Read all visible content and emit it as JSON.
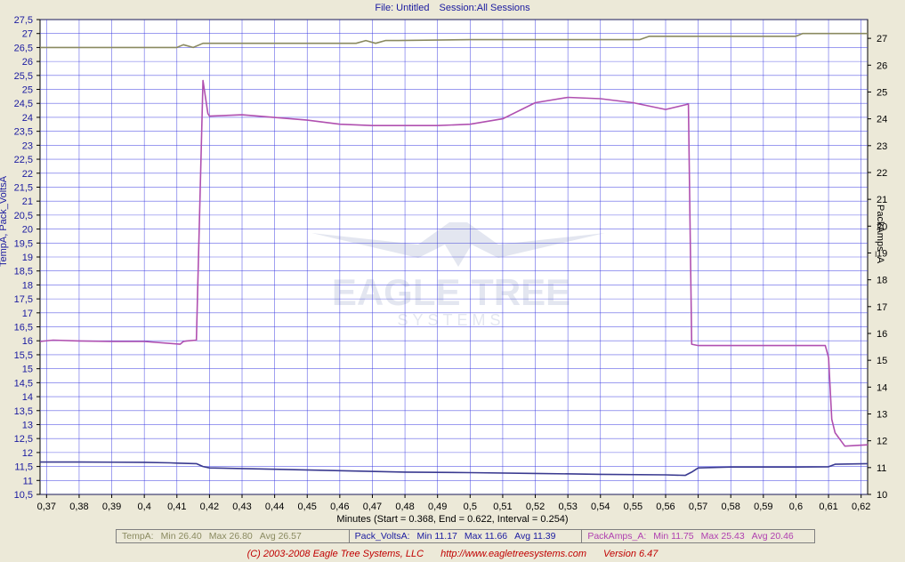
{
  "header": {
    "file_label": "File: Untitled",
    "session_label": "Session:All Sessions"
  },
  "footer": {
    "copyright": "(C) 2003-2008 Eagle Tree Systems, LLC",
    "url": "http://www.eagletreesystems.com",
    "version": "Version 6.47"
  },
  "watermark": {
    "name": "EAGLE TREE",
    "sub": "SYSTEMS"
  },
  "legend": [
    {
      "name": "TempA:",
      "min": "Min 26.40",
      "max": "Max 26.80",
      "avg": "Avg 26.57",
      "color": "#8a8a60"
    },
    {
      "name": "Pack_VoltsA:",
      "min": "Min 11.17",
      "max": "Max 11.66",
      "avg": "Avg 11.39",
      "color": "#1a1aa0"
    },
    {
      "name": "PackAmps_A:",
      "min": "Min 11.75",
      "max": "Max 25.43",
      "avg": "Avg 20.46",
      "color": "#b040b0"
    }
  ],
  "colors": {
    "plot_bg": "#ffffff",
    "grid": "#3a3ae0",
    "temp": "#8a8a60",
    "volts": "#3a3a90",
    "amps": "#b050b0",
    "left_tick": "#1a1aa0",
    "right_tick": "#000000"
  },
  "chart_data": {
    "type": "line",
    "xlabel": "Minutes (Start = 0.368, End = 0.622, Interval = 0.254)",
    "ylabel_left": "TempA, Pack_VoltsA",
    "ylabel_right": "PackAmps_A",
    "xlim": [
      0.368,
      0.622
    ],
    "ylim_left": [
      10.5,
      27.5
    ],
    "ylim_right": [
      10,
      27.7
    ],
    "x_ticks": [
      "0,37",
      "0,38",
      "0,39",
      "0,4",
      "0,41",
      "0,42",
      "0,43",
      "0,44",
      "0,45",
      "0,46",
      "0,47",
      "0,48",
      "0,49",
      "0,5",
      "0,51",
      "0,52",
      "0,53",
      "0,54",
      "0,55",
      "0,56",
      "0,57",
      "0,58",
      "0,59",
      "0,6",
      "0,61",
      "0,62"
    ],
    "y_left_ticks": [
      "10,5",
      "11",
      "11,5",
      "12",
      "12,5",
      "13",
      "13,5",
      "14",
      "14,5",
      "15",
      "15,5",
      "16",
      "16,5",
      "17",
      "17,5",
      "18",
      "18,5",
      "19",
      "19,5",
      "20",
      "20,5",
      "21",
      "21,5",
      "22",
      "22,5",
      "23",
      "23,5",
      "24",
      "24,5",
      "25",
      "25,5",
      "26",
      "26,5",
      "27",
      "27,5"
    ],
    "y_right_ticks": [
      "10",
      "11",
      "12",
      "13",
      "14",
      "15",
      "16",
      "17",
      "18",
      "19",
      "20",
      "21",
      "22",
      "23",
      "24",
      "25",
      "26",
      "27"
    ],
    "grid": true,
    "series": [
      {
        "name": "TempA",
        "axis": "left",
        "x": [
          0.368,
          0.41,
          0.412,
          0.415,
          0.418,
          0.42,
          0.465,
          0.468,
          0.471,
          0.474,
          0.478,
          0.5,
          0.54,
          0.552,
          0.555,
          0.57,
          0.6,
          0.602,
          0.622
        ],
        "y": [
          26.5,
          26.5,
          26.6,
          26.5,
          26.65,
          26.65,
          26.65,
          26.75,
          26.65,
          26.75,
          26.75,
          26.78,
          26.78,
          26.78,
          26.9,
          26.9,
          26.9,
          27.0,
          27.0
        ]
      },
      {
        "name": "Pack_VoltsA",
        "axis": "left",
        "x": [
          0.368,
          0.38,
          0.4,
          0.408,
          0.41,
          0.416,
          0.418,
          0.42,
          0.44,
          0.46,
          0.48,
          0.5,
          0.52,
          0.54,
          0.56,
          0.566,
          0.568,
          0.57,
          0.58,
          0.6,
          0.61,
          0.612,
          0.622
        ],
        "y": [
          11.66,
          11.66,
          11.65,
          11.63,
          11.62,
          11.6,
          11.5,
          11.45,
          11.4,
          11.35,
          11.3,
          11.28,
          11.25,
          11.22,
          11.2,
          11.18,
          11.3,
          11.45,
          11.48,
          11.48,
          11.49,
          11.58,
          11.6
        ]
      },
      {
        "name": "PackAmps_A",
        "axis": "right",
        "x": [
          0.368,
          0.372,
          0.38,
          0.39,
          0.4,
          0.411,
          0.412,
          0.413,
          0.416,
          0.418,
          0.4195,
          0.42,
          0.43,
          0.44,
          0.45,
          0.46,
          0.47,
          0.48,
          0.49,
          0.5,
          0.51,
          0.52,
          0.53,
          0.54,
          0.55,
          0.56,
          0.567,
          0.568,
          0.57,
          0.58,
          0.59,
          0.6,
          0.609,
          0.61,
          0.611,
          0.612,
          0.615,
          0.622
        ],
        "y": [
          15.7,
          15.75,
          15.72,
          15.7,
          15.7,
          15.6,
          15.7,
          15.72,
          15.75,
          25.43,
          24.2,
          24.1,
          24.15,
          24.05,
          23.95,
          23.8,
          23.75,
          23.75,
          23.75,
          23.8,
          24.0,
          24.6,
          24.8,
          24.75,
          24.6,
          24.35,
          24.55,
          15.6,
          15.55,
          15.55,
          15.55,
          15.55,
          15.55,
          15.1,
          12.8,
          12.3,
          11.8,
          11.85
        ]
      }
    ]
  }
}
